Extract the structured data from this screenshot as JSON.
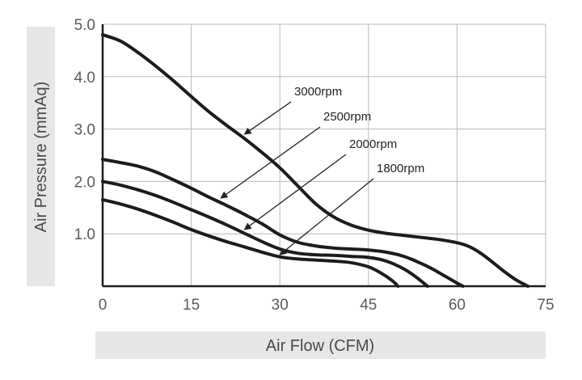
{
  "chart_data": {
    "type": "line",
    "title": "",
    "xlabel": "Air Flow (CFM)",
    "ylabel": "Air Pressure (mmAq)",
    "xlim": [
      0,
      75
    ],
    "ylim": [
      0,
      5.0
    ],
    "x_ticks": [
      "0",
      "15",
      "30",
      "45",
      "60",
      "75"
    ],
    "y_ticks": [
      "1.0",
      "2.0",
      "3.0",
      "4.0",
      "5.0"
    ],
    "grid": true,
    "series": [
      {
        "name": "3000rpm",
        "x": [
          0,
          3,
          6,
          9,
          12,
          15,
          18,
          21,
          24,
          27,
          30,
          33,
          36,
          39,
          42,
          45,
          48,
          51,
          54,
          57,
          60,
          62,
          64,
          66,
          68,
          70,
          72
        ],
        "y": [
          4.8,
          4.68,
          4.46,
          4.2,
          3.92,
          3.62,
          3.33,
          3.07,
          2.82,
          2.55,
          2.26,
          1.92,
          1.58,
          1.33,
          1.17,
          1.07,
          1.01,
          0.97,
          0.93,
          0.89,
          0.83,
          0.76,
          0.63,
          0.46,
          0.28,
          0.12,
          0.0
        ]
      },
      {
        "name": "2500rpm",
        "x": [
          0,
          3,
          6,
          9,
          12,
          15,
          18,
          21,
          24,
          27,
          30,
          33,
          36,
          39,
          42,
          45,
          48,
          51,
          54,
          56,
          58,
          60,
          61
        ],
        "y": [
          2.42,
          2.36,
          2.29,
          2.18,
          2.03,
          1.87,
          1.7,
          1.54,
          1.37,
          1.19,
          0.98,
          0.84,
          0.77,
          0.73,
          0.71,
          0.69,
          0.65,
          0.57,
          0.43,
          0.32,
          0.19,
          0.06,
          0.0
        ]
      },
      {
        "name": "2000rpm",
        "x": [
          0,
          3,
          6,
          9,
          12,
          15,
          18,
          21,
          24,
          27,
          30,
          33,
          36,
          39,
          42,
          45,
          48,
          51,
          53,
          55
        ],
        "y": [
          2.0,
          1.93,
          1.84,
          1.73,
          1.6,
          1.46,
          1.32,
          1.17,
          1.01,
          0.85,
          0.71,
          0.63,
          0.6,
          0.59,
          0.57,
          0.55,
          0.48,
          0.33,
          0.18,
          0.0
        ]
      },
      {
        "name": "1800rpm",
        "x": [
          0,
          3,
          6,
          9,
          12,
          15,
          18,
          21,
          24,
          27,
          30,
          33,
          36,
          39,
          42,
          45,
          47,
          49,
          50
        ],
        "y": [
          1.65,
          1.57,
          1.47,
          1.35,
          1.22,
          1.08,
          0.96,
          0.85,
          0.75,
          0.65,
          0.56,
          0.52,
          0.5,
          0.48,
          0.45,
          0.37,
          0.26,
          0.11,
          0.0
        ]
      }
    ],
    "annotations": [
      {
        "text": "3000rpm",
        "series": "3000rpm",
        "x": 24,
        "y": 2.9
      },
      {
        "text": "2500rpm",
        "series": "2500rpm",
        "x": 20,
        "y": 1.68
      },
      {
        "text": "2000rpm",
        "series": "2000rpm",
        "x": 24,
        "y": 1.08
      },
      {
        "text": "1800rpm",
        "series": "1800rpm",
        "x": 30,
        "y": 0.6
      }
    ]
  }
}
